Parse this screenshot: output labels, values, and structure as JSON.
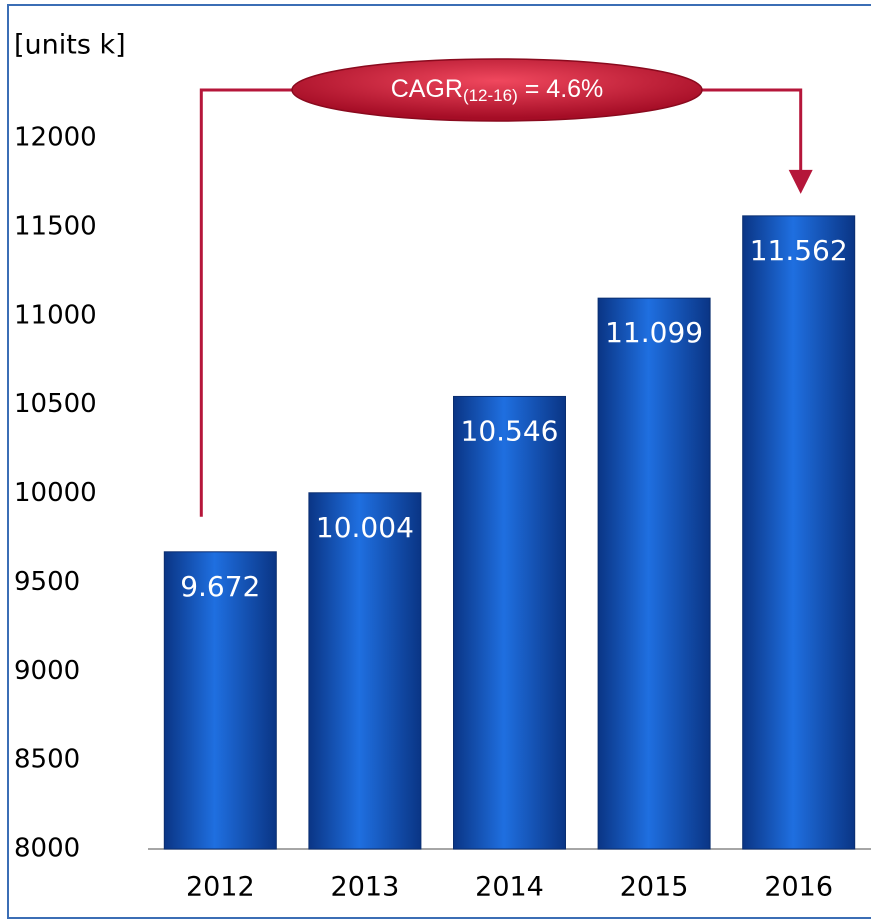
{
  "chart_data": {
    "type": "bar",
    "y_axis_label": "[units k]",
    "categories": [
      "2012",
      "2013",
      "2014",
      "2015",
      "2016"
    ],
    "values": [
      9672,
      10004,
      10546,
      11099,
      11562
    ],
    "value_labels": [
      "9.672",
      "10.004",
      "10.546",
      "11.099",
      "11.562"
    ],
    "color": "#0f4fbf",
    "ylim": [
      8000,
      12000
    ],
    "yticks": [
      8000,
      8500,
      9000,
      9500,
      10000,
      10500,
      11000,
      11500,
      12000
    ],
    "annotation": {
      "text": "CAGR",
      "subscript": "(12-16)",
      "suffix": "= 4.6%"
    }
  }
}
